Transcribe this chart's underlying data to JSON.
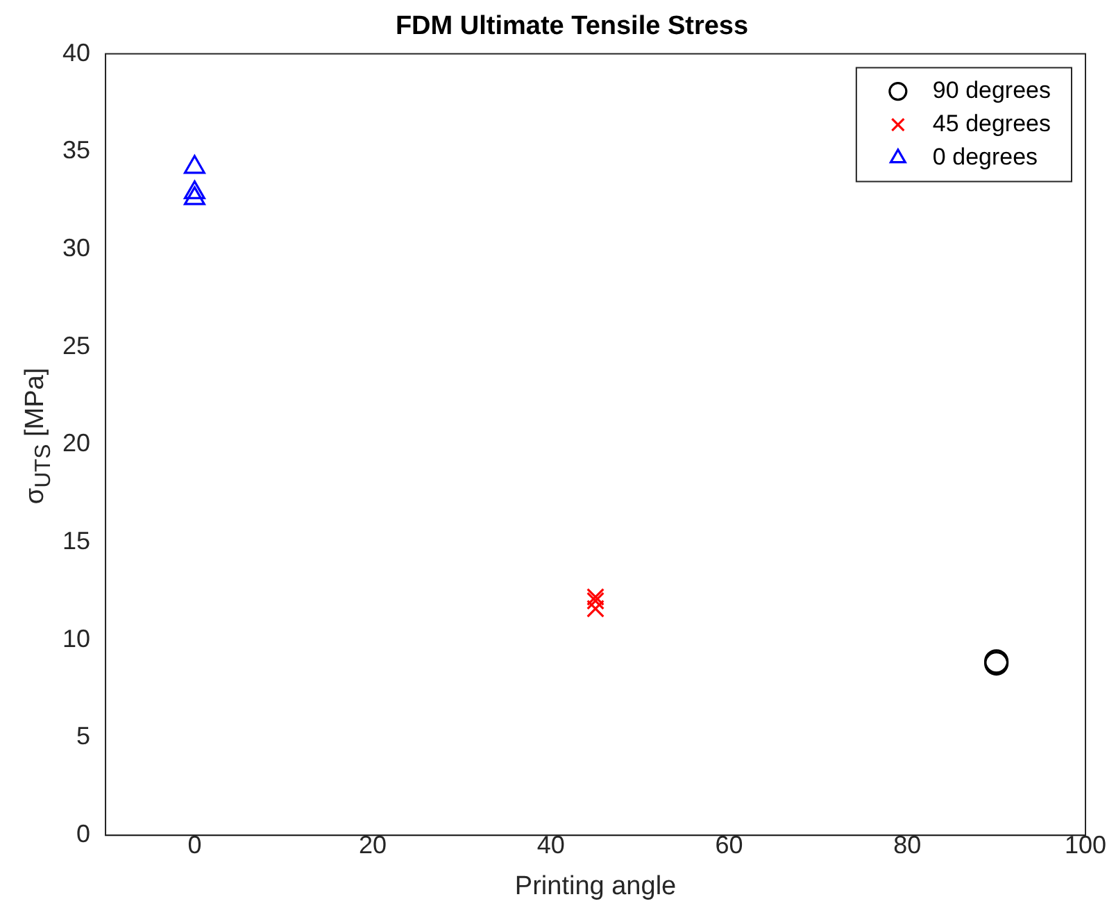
{
  "chart_data": {
    "type": "scatter",
    "title": "FDM Ultimate Tensile Stress",
    "xlabel": "Printing angle",
    "ylabel": "σ$_{UTS}$ [MPa]",
    "series": [
      {
        "name": "90 degrees",
        "color": "#000000",
        "marker": "circle",
        "x": [
          90,
          90
        ],
        "values": [
          8.9,
          8.8
        ]
      },
      {
        "name": "45 degrees",
        "color": "#ff0000",
        "marker": "cross",
        "x": [
          45,
          45,
          45
        ],
        "values": [
          12.2,
          11.6,
          12.0
        ]
      },
      {
        "name": "0 degrees",
        "color": "#0000ff",
        "marker": "triangle",
        "x": [
          0,
          0,
          0
        ],
        "values": [
          34.2,
          32.9,
          32.6
        ]
      }
    ],
    "xlim": [
      -10,
      100
    ],
    "xticks": [
      0,
      20,
      40,
      60,
      80,
      100
    ],
    "ylim": [
      0,
      40
    ],
    "yticks": [
      0,
      5,
      10,
      15,
      20,
      25,
      30,
      35,
      40
    ],
    "grid": false,
    "legend": "top right"
  }
}
